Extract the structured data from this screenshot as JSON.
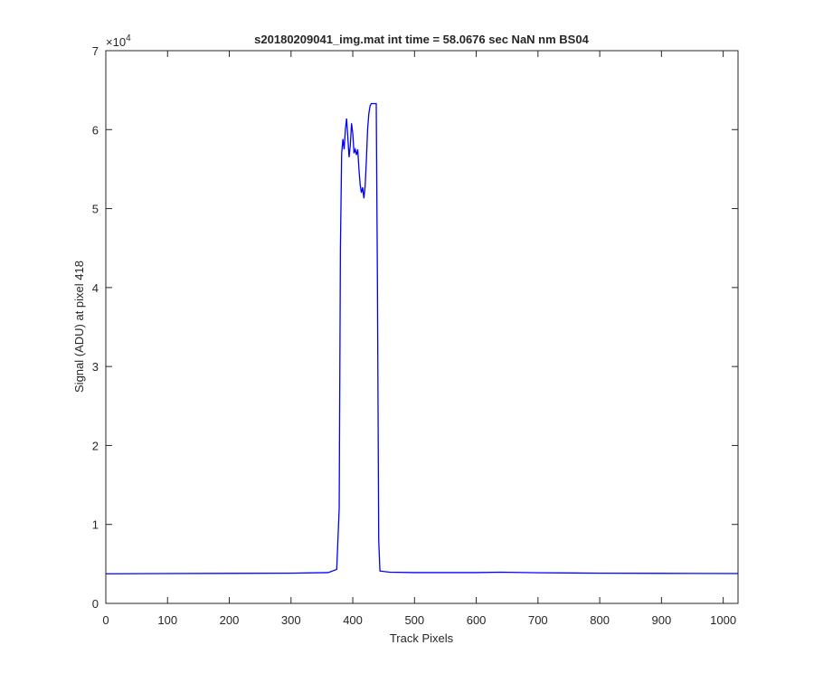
{
  "chart_data": {
    "type": "line",
    "title": "s20180209041_img.mat int time = 58.0676 sec  NaN nm BS04",
    "x_label": "Track Pixels",
    "y_label": "Signal (ADU) at pixel 418",
    "y_exponent": {
      "base": "×10",
      "power": "4"
    },
    "xlim": [
      0,
      1024
    ],
    "xticks": [
      0,
      100,
      200,
      300,
      400,
      500,
      600,
      700,
      800,
      900,
      1000
    ],
    "ylim": [
      0,
      70000
    ],
    "yticks": [
      {
        "value": 0,
        "label": "0"
      },
      {
        "value": 10000,
        "label": "1"
      },
      {
        "value": 20000,
        "label": "2"
      },
      {
        "value": 30000,
        "label": "3"
      },
      {
        "value": 40000,
        "label": "4"
      },
      {
        "value": 50000,
        "label": "5"
      },
      {
        "value": 60000,
        "label": "6"
      },
      {
        "value": 70000,
        "label": "7"
      }
    ],
    "grid": false,
    "x": [
      0,
      100,
      200,
      300,
      360,
      374,
      378,
      380,
      382,
      384,
      386,
      388,
      390,
      392,
      394,
      396,
      398,
      400,
      402,
      404,
      406,
      408,
      410,
      412,
      414,
      416,
      418,
      420,
      422,
      424,
      426,
      428,
      430,
      438,
      440,
      442,
      444,
      460,
      500,
      600,
      640,
      700,
      800,
      900,
      1024
    ],
    "series": [
      {
        "name": "signal",
        "color": "#0000ff",
        "values": [
          3750,
          3780,
          3800,
          3820,
          3900,
          4300,
          12000,
          45000,
          57000,
          58800,
          57500,
          60000,
          61400,
          59000,
          56500,
          58000,
          60800,
          59500,
          57000,
          57500,
          56800,
          57500,
          55000,
          53000,
          52000,
          52700,
          51300,
          52800,
          56000,
          60000,
          62000,
          63000,
          63300,
          63300,
          40000,
          8000,
          4100,
          3950,
          3900,
          3900,
          3950,
          3880,
          3820,
          3800,
          3780
        ]
      }
    ]
  }
}
